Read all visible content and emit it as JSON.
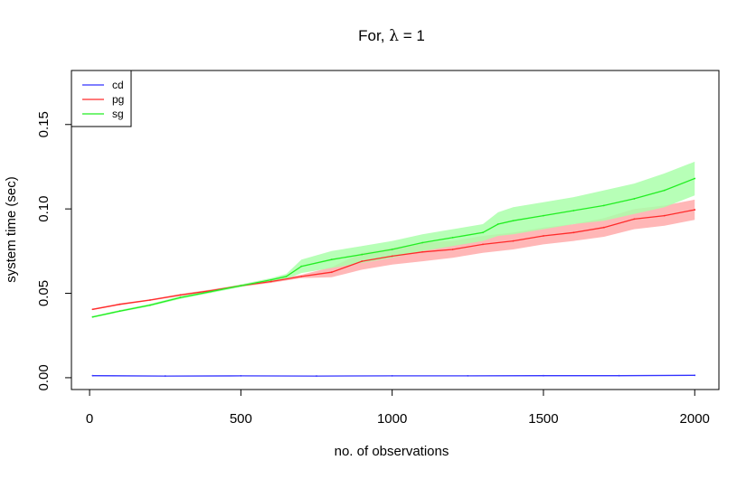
{
  "chart_data": {
    "type": "line",
    "title_prefix": "For, ",
    "title_lambda": "λ",
    "title_suffix": " = 1",
    "xlabel": "no. of observations",
    "ylabel": "system time (sec)",
    "xlim": [
      -60,
      2080
    ],
    "ylim": [
      -0.007,
      0.182
    ],
    "xticks": [
      0,
      500,
      1000,
      1500,
      2000
    ],
    "xtick_labels": [
      "0",
      "500",
      "1000",
      "1500",
      "2000"
    ],
    "yticks": [
      0.0,
      0.05,
      0.1,
      0.15
    ],
    "ytick_labels": [
      "0.00",
      "0.05",
      "0.10",
      "0.15"
    ],
    "legend_position": "top-left",
    "grid": false,
    "series": [
      {
        "name": "cd",
        "color": "#3333ff",
        "band_color": "#aaaaff",
        "x": [
          10,
          250,
          500,
          750,
          1000,
          1250,
          1500,
          1750,
          2000
        ],
        "y": [
          0.0012,
          0.001,
          0.0011,
          0.001,
          0.0011,
          0.0011,
          0.0012,
          0.0012,
          0.0014
        ],
        "spread": [
          0.0002,
          0.0002,
          0.0002,
          0.0002,
          0.0002,
          0.0002,
          0.0002,
          0.0002,
          0.0002
        ]
      },
      {
        "name": "pg",
        "color": "#ff2a2a",
        "band_color": "#ffaaaa",
        "x": [
          10,
          100,
          200,
          300,
          400,
          500,
          600,
          700,
          800,
          900,
          1000,
          1100,
          1200,
          1300,
          1400,
          1500,
          1600,
          1700,
          1800,
          1900,
          2000
        ],
        "y": [
          0.0405,
          0.0435,
          0.046,
          0.049,
          0.0515,
          0.0545,
          0.057,
          0.06,
          0.0625,
          0.069,
          0.072,
          0.0745,
          0.076,
          0.079,
          0.081,
          0.084,
          0.086,
          0.089,
          0.094,
          0.096,
          0.0995
        ],
        "spread": [
          0.0004,
          0.0005,
          0.0005,
          0.0006,
          0.0007,
          0.0007,
          0.0008,
          0.001,
          0.003,
          0.005,
          0.005,
          0.0055,
          0.005,
          0.005,
          0.005,
          0.005,
          0.005,
          0.0055,
          0.006,
          0.006,
          0.006
        ]
      },
      {
        "name": "sg",
        "color": "#22ee22",
        "band_color": "#aaffaa",
        "x": [
          10,
          100,
          200,
          300,
          400,
          500,
          600,
          650,
          700,
          800,
          900,
          1000,
          1100,
          1200,
          1300,
          1350,
          1400,
          1500,
          1600,
          1700,
          1800,
          1900,
          2000
        ],
        "y": [
          0.036,
          0.0395,
          0.043,
          0.0475,
          0.051,
          0.0545,
          0.058,
          0.06,
          0.066,
          0.07,
          0.073,
          0.076,
          0.08,
          0.083,
          0.086,
          0.091,
          0.093,
          0.096,
          0.099,
          0.102,
          0.106,
          0.111,
          0.118
        ],
        "spread": [
          0.0005,
          0.0006,
          0.0007,
          0.0008,
          0.0008,
          0.0008,
          0.001,
          0.0015,
          0.004,
          0.005,
          0.005,
          0.005,
          0.005,
          0.005,
          0.005,
          0.007,
          0.008,
          0.008,
          0.008,
          0.009,
          0.009,
          0.01,
          0.01
        ]
      }
    ]
  }
}
